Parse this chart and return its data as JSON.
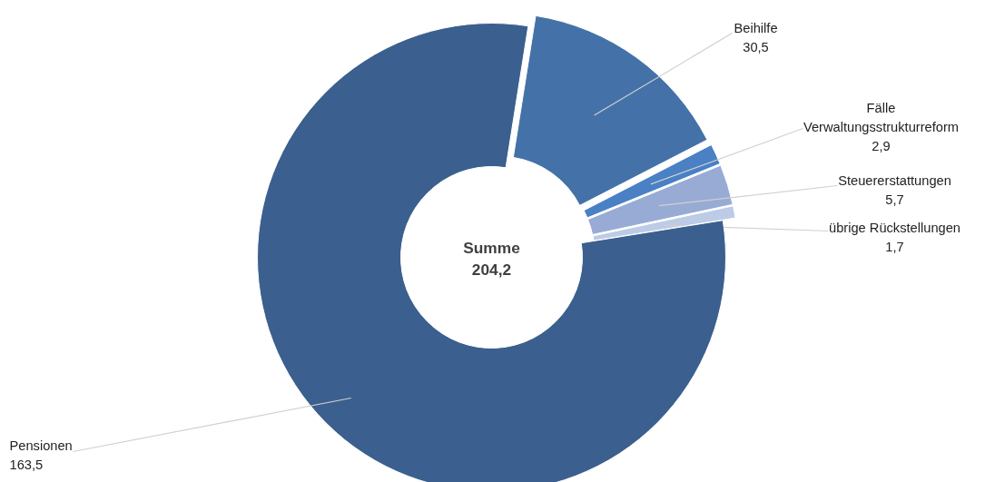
{
  "chart_data": {
    "type": "donut",
    "categories": [
      "Beihilfe",
      "Fälle Verwaltungsstrukturreform",
      "Steuererstattungen",
      "übrige Rückstellungen",
      "Pensionen"
    ],
    "values": [
      30.5,
      2.9,
      5.7,
      1.7,
      163.5
    ],
    "colors": [
      "#4472a8",
      "#4a80c4",
      "#97abd5",
      "#bccbe6",
      "#3b5f8e"
    ],
    "value_labels": [
      "30,5",
      "2,9",
      "5,7",
      "1,7",
      "163,5"
    ],
    "annotations": [
      "Summe\n204,2"
    ]
  }
}
